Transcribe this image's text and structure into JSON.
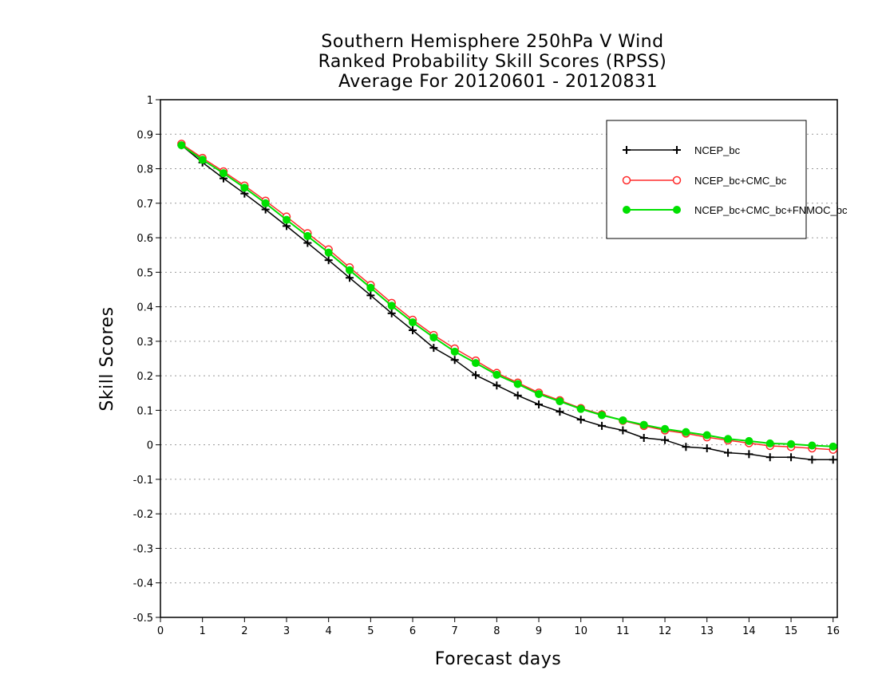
{
  "chart_data": {
    "type": "line",
    "title": [
      "Southern Hemisphere 250hPa V Wind",
      "Ranked Probability Skill Scores (RPSS)",
      "Average For 20120601 - 20120831"
    ],
    "xlabel": "Forecast days",
    "ylabel": "Skill Scores",
    "xlim": [
      0,
      16.1
    ],
    "ylim": [
      -0.5,
      1
    ],
    "xticks": [
      0,
      1,
      2,
      3,
      4,
      5,
      6,
      7,
      8,
      9,
      10,
      11,
      12,
      13,
      14,
      15,
      16
    ],
    "xtick_labels": [
      "0",
      "1",
      "2",
      "3",
      "4",
      "5",
      "6",
      "7",
      "8",
      "9",
      "10",
      "11",
      "12",
      "13",
      "14",
      "15",
      "16"
    ],
    "yticks": [
      -0.5,
      -0.4,
      -0.3,
      -0.2,
      -0.1,
      0,
      0.1,
      0.2,
      0.3,
      0.4,
      0.5,
      0.6,
      0.7,
      0.8,
      0.9,
      1
    ],
    "ytick_labels": [
      "-0.5",
      "-0.4",
      "-0.3",
      "-0.2",
      "-0.1",
      "0",
      "0.1",
      "0.2",
      "0.3",
      "0.4",
      "0.5",
      "0.6",
      "0.7",
      "0.8",
      "0.9",
      "1"
    ],
    "grid": "horizontal dotted",
    "legend_position": "top-right",
    "x": [
      0.5,
      1,
      1.5,
      2,
      2.5,
      3,
      3.5,
      4,
      4.5,
      5,
      5.5,
      6,
      6.5,
      7,
      7.5,
      8,
      8.5,
      9,
      9.5,
      10,
      10.5,
      11,
      11.5,
      12,
      12.5,
      13,
      13.5,
      14,
      14.5,
      15,
      15.5,
      16
    ],
    "series": [
      {
        "name": "NCEP_bc",
        "color": "#000000",
        "marker": "plus",
        "values": [
          0.868,
          0.818,
          0.772,
          0.728,
          0.682,
          0.634,
          0.585,
          0.535,
          0.484,
          0.433,
          0.381,
          0.332,
          0.281,
          0.246,
          0.202,
          0.172,
          0.143,
          0.117,
          0.096,
          0.073,
          0.055,
          0.042,
          0.02,
          0.014,
          -0.006,
          -0.01,
          -0.023,
          -0.027,
          -0.036,
          -0.036,
          -0.043,
          -0.043
        ]
      },
      {
        "name": "NCEP_bc+CMC_bc",
        "color": "#ff2a2a",
        "marker": "open-circle",
        "values": [
          0.872,
          0.831,
          0.792,
          0.751,
          0.707,
          0.661,
          0.613,
          0.566,
          0.514,
          0.463,
          0.411,
          0.362,
          0.318,
          0.279,
          0.244,
          0.208,
          0.18,
          0.151,
          0.129,
          0.106,
          0.088,
          0.07,
          0.055,
          0.042,
          0.033,
          0.022,
          0.013,
          0.005,
          -0.003,
          -0.006,
          -0.01,
          -0.014
        ]
      },
      {
        "name": "NCEP_bc+CMC_bc+FNMOC_bc",
        "color": "#00e000",
        "marker": "filled-circle",
        "values": [
          0.868,
          0.826,
          0.787,
          0.745,
          0.7,
          0.652,
          0.605,
          0.557,
          0.506,
          0.455,
          0.403,
          0.355,
          0.311,
          0.27,
          0.237,
          0.203,
          0.176,
          0.147,
          0.126,
          0.104,
          0.086,
          0.071,
          0.058,
          0.046,
          0.037,
          0.028,
          0.017,
          0.011,
          0.004,
          0.002,
          -0.002,
          -0.005
        ]
      }
    ]
  },
  "colors": {
    "axis": "#000000",
    "grid": "#9a9a9a",
    "background": "#ffffff"
  }
}
